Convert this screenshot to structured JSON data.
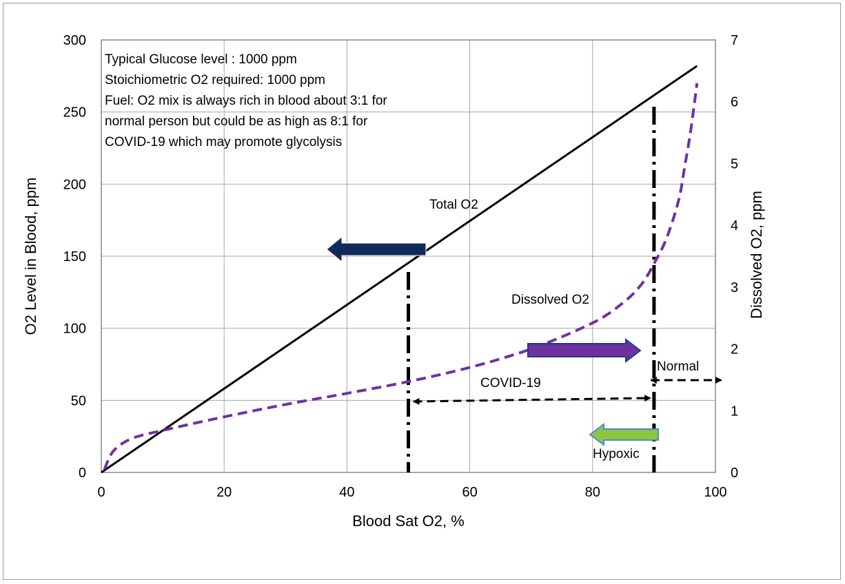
{
  "chart_data": {
    "type": "line",
    "title": "",
    "xlabel": "Blood Sat O2, %",
    "ylabel": "O2 Level in Blood, ppm",
    "y2label": "Dissolved O2, ppm",
    "xlim": [
      0,
      100
    ],
    "ylim": [
      0,
      300
    ],
    "y2lim": [
      0,
      7
    ],
    "grid": true,
    "x_ticks": [
      "0",
      "20",
      "40",
      "60",
      "80",
      "100"
    ],
    "y_ticks": [
      "0",
      "50",
      "100",
      "150",
      "200",
      "250",
      "300"
    ],
    "y2_ticks": [
      "0",
      "1",
      "2",
      "3",
      "4",
      "5",
      "6",
      "7"
    ],
    "series": [
      {
        "name": "Total O2",
        "axis": "left",
        "color": "#000000",
        "style": "solid",
        "x": [
          0,
          97
        ],
        "y": [
          0,
          282
        ]
      },
      {
        "name": "Dissolved O2",
        "axis": "right",
        "color": "#7030a0",
        "style": "dashed",
        "x": [
          0.5,
          2,
          5,
          10,
          20,
          30,
          40,
          50,
          60,
          70,
          80,
          85,
          88,
          90,
          92,
          94,
          95,
          96,
          97
        ],
        "y": [
          0.05,
          0.35,
          0.55,
          0.68,
          0.9,
          1.1,
          1.28,
          1.47,
          1.7,
          2.0,
          2.42,
          2.75,
          3.05,
          3.38,
          3.78,
          4.4,
          4.95,
          5.55,
          6.3
        ]
      }
    ],
    "annotations": {
      "note_lines": [
        "Typical Glucose level : 1000 ppm",
        "Stoichiometric O2 required: 1000 ppm",
        "Fuel: O2 mix is always rich in blood about 3:1 for",
        "normal person  but could be as high as 8:1 for",
        "COVID-19 which may promote glycolysis"
      ],
      "total_o2_label": "Total O2",
      "dissolved_o2_label": "Dissolved O2",
      "covid_label": "COVID-19",
      "normal_label": "Normal",
      "hypoxic_label": "Hypoxic",
      "covid_range": [
        50,
        90
      ],
      "normal_from": 90,
      "arrow_colors": {
        "left_axis_arrow": "#102a5c",
        "right_axis_arrow": "#7030a0",
        "hypoxic_arrow": "#8cc63f"
      }
    }
  }
}
